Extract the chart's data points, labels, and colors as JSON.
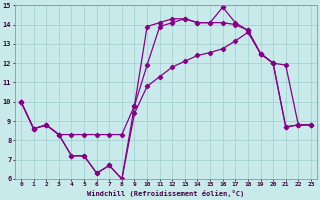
{
  "xlabel": "Windchill (Refroidissement éolien,°C)",
  "background_color": "#c8eaea",
  "line_color": "#880088",
  "xlim": [
    -0.5,
    23.5
  ],
  "ylim": [
    6,
    15
  ],
  "xticks": [
    0,
    1,
    2,
    3,
    4,
    5,
    6,
    7,
    8,
    9,
    10,
    11,
    12,
    13,
    14,
    15,
    16,
    17,
    18,
    19,
    20,
    21,
    22,
    23
  ],
  "yticks": [
    6,
    7,
    8,
    9,
    10,
    11,
    12,
    13,
    14,
    15
  ],
  "grid_color": "#a0cccc",
  "line1_x": [
    0,
    1,
    2,
    3,
    4,
    5,
    6,
    7,
    8,
    9,
    10,
    11,
    12,
    13,
    14,
    15,
    16,
    17,
    18,
    19,
    20,
    21,
    22,
    23
  ],
  "line1_y": [
    10.0,
    8.6,
    8.8,
    8.3,
    8.3,
    8.3,
    8.3,
    8.3,
    8.3,
    9.8,
    11.9,
    13.9,
    14.1,
    14.3,
    14.1,
    14.1,
    14.1,
    14.0,
    13.7,
    12.5,
    12.0,
    8.7,
    8.8,
    8.8
  ],
  "line2_x": [
    0,
    1,
    2,
    3,
    4,
    5,
    6,
    7,
    8,
    9,
    10,
    11,
    12,
    13,
    14,
    15,
    16,
    17,
    18,
    19,
    20,
    21,
    22,
    23
  ],
  "line2_y": [
    10.0,
    8.6,
    8.8,
    8.3,
    7.2,
    7.2,
    6.3,
    6.7,
    6.0,
    9.8,
    13.9,
    14.1,
    14.3,
    14.3,
    14.1,
    14.1,
    14.9,
    14.1,
    13.7,
    12.5,
    12.0,
    8.7,
    8.8,
    8.8
  ],
  "line3_x": [
    0,
    1,
    2,
    3,
    4,
    5,
    6,
    7,
    8,
    9,
    10,
    11,
    12,
    13,
    14,
    15,
    16,
    17,
    18,
    19,
    20,
    21,
    22,
    23
  ],
  "line3_y": [
    10.0,
    8.6,
    8.8,
    8.3,
    7.2,
    7.2,
    6.3,
    6.7,
    6.0,
    9.4,
    10.8,
    11.3,
    11.8,
    12.1,
    12.4,
    12.55,
    12.75,
    13.15,
    13.6,
    12.5,
    12.0,
    11.9,
    8.8,
    8.8
  ],
  "marker": "D",
  "markersize": 2.2,
  "linewidth": 0.9
}
